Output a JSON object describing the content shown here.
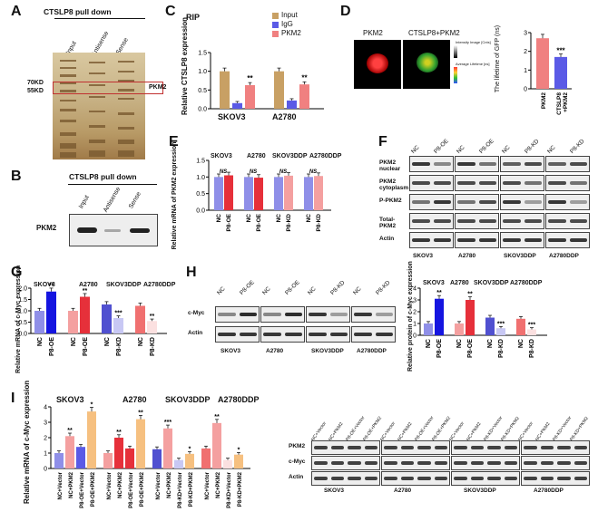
{
  "panels": {
    "A": {
      "letter": "A",
      "title": "CTSLP8 pull down",
      "lanes": [
        "Input",
        "Antisense",
        "Sense"
      ],
      "marker1": "70KD",
      "marker2": "55KD",
      "target": "PKM2"
    },
    "B": {
      "letter": "B",
      "title": "CTSLP8 pull down",
      "lanes": [
        "Input",
        "Antisense",
        "Sense"
      ],
      "target": "PKM2"
    },
    "C": {
      "letter": "C",
      "title": "RIP",
      "ylabel": "Relative CTSLP8 expression",
      "legend": [
        "Input",
        "IgG",
        "PKM2"
      ],
      "groups": [
        "SKOV3",
        "A2780"
      ],
      "sig": [
        "**",
        "**"
      ]
    },
    "D": {
      "letter": "D",
      "img1": "PKM2",
      "img2": "CTSLP8+PKM2",
      "scale1": "Intensity Image [Cnts]",
      "scale2": "Average Lifetime [ns]",
      "ylabel": "The lifetime of GFP (ns)",
      "cats": [
        "PKM2",
        "CTSLP8 +PKM2"
      ],
      "sig": "***"
    },
    "E": {
      "letter": "E",
      "ylabel": "Relative mRNA of PKM2 expression",
      "lines": [
        "SKOV3",
        "A2780",
        "SKOV3DDP",
        "A2780DDP"
      ],
      "sig": "NS",
      "xcats": [
        "NC",
        "P8-OE",
        "NC",
        "P8-OE",
        "NC",
        "P8-KD",
        "NC",
        "P8-KD"
      ]
    },
    "F": {
      "letter": "F",
      "rows": [
        "PKM2 nuclear",
        "PKM2 cytoplasm",
        "P-PKM2",
        "Total-PKM2",
        "Actin"
      ],
      "lanes": [
        "NC",
        "P8-OE",
        "NC",
        "P8-OE",
        "NC",
        "P8-KD",
        "NC",
        "P8-KD"
      ],
      "lines": [
        "SKOV3",
        "A2780",
        "SKOV3DDP",
        "A2780DDP"
      ]
    },
    "G": {
      "letter": "G",
      "ylabel": "Relative mRNA of c-Myc expression",
      "lines": [
        "SKOV3",
        "A2780",
        "SKOV3DDP",
        "A2780DDP"
      ],
      "xcats": [
        "NC",
        "P8-OE",
        "NC",
        "P8-OE",
        "NC",
        "P8-KD",
        "NC",
        "P8-KD"
      ],
      "sig": [
        "**",
        "**",
        "***",
        "**"
      ]
    },
    "H": {
      "letter": "H",
      "rows": [
        "c-Myc",
        "Actin"
      ],
      "lanes": [
        "NC",
        "P8-OE",
        "NC",
        "P8-OE",
        "NC",
        "P8-KD",
        "NC",
        "P8-KD"
      ],
      "lines": [
        "SKOV3",
        "A2780",
        "SKOV3DDP",
        "A2780DDP"
      ],
      "ylabel": "Relative protein of c-Myc expression",
      "sig": [
        "**",
        "**",
        "***",
        "***"
      ]
    },
    "I": {
      "letter": "I",
      "ylabel": "Relative mRNA of c-Myc expression",
      "lines": [
        "SKOV3",
        "A2780",
        "SKOV3DDP",
        "A2780DDP"
      ],
      "xcats_oe": [
        "NC+Vector",
        "NC+PKM2",
        "P8-OE+Vector",
        "P8-OE+PKM2"
      ],
      "xcats_kd": [
        "NC+Vector",
        "NC+PKM2",
        "P8-KD+Vector",
        "P8-KD+PKM2"
      ],
      "blot_rows": [
        "PKM2",
        "c-Myc",
        "Actin"
      ],
      "blot_lines": [
        "SKOV3",
        "A2780",
        "SKOV3DDP",
        "A2780DDP"
      ]
    }
  },
  "colors": {
    "input": "#c8a064",
    "igg": "#5a5ae6",
    "pkm2": "#f08080",
    "skov3_nc": "#8f8fe8",
    "skov3_p8": "#1515e0",
    "a2780_nc": "#f4a0a0",
    "a2780_p8": "#e6303a",
    "skov3ddp_nc": "#5050d0",
    "skov3ddp_kd": "#c8c8f4",
    "a2780ddp_nc": "#f07070",
    "a2780ddp_kd": "#fbe0e0",
    "orange": "#f6c080"
  },
  "chart_data": [
    {
      "panel": "C",
      "type": "bar",
      "categories": [
        "SKOV3",
        "A2780"
      ],
      "series": [
        {
          "name": "Input",
          "values": [
            1.0,
            1.0
          ]
        },
        {
          "name": "IgG",
          "values": [
            0.15,
            0.22
          ]
        },
        {
          "name": "PKM2",
          "values": [
            0.63,
            0.65
          ]
        }
      ],
      "ylabel": "Relative CTSLP8 expression",
      "ylim": [
        0,
        1.5
      ],
      "yticks": [
        0.0,
        0.5,
        1.0,
        1.5
      ]
    },
    {
      "panel": "D",
      "type": "bar",
      "categories": [
        "PKM2",
        "CTSLP8 +PKM2"
      ],
      "values": [
        2.7,
        1.7
      ],
      "ylabel": "The lifetime of GFP (ns)",
      "ylim": [
        0,
        3
      ],
      "yticks": [
        0,
        1,
        2,
        3
      ]
    },
    {
      "panel": "E",
      "type": "bar",
      "categories": [
        "NC",
        "P8-OE",
        "NC",
        "P8-OE",
        "NC",
        "P8-KD",
        "NC",
        "P8-KD"
      ],
      "values": [
        1.0,
        1.05,
        1.0,
        0.98,
        1.0,
        1.04,
        1.0,
        1.03
      ],
      "ylabel": "Relative mRNA of PKM2 expression",
      "ylim": [
        0,
        1.5
      ],
      "yticks": [
        0.0,
        0.5,
        1.0,
        1.5
      ]
    },
    {
      "panel": "G",
      "type": "bar",
      "categories": [
        "NC",
        "P8-OE",
        "NC",
        "P8-OE",
        "NC",
        "P8-KD",
        "NC",
        "P8-KD"
      ],
      "values": [
        1.0,
        1.85,
        1.0,
        1.62,
        1.28,
        0.68,
        1.22,
        0.55
      ],
      "ylabel": "Relative mRNA of c-Myc expression",
      "ylim": [
        0,
        2.0
      ],
      "yticks": [
        0.0,
        0.5,
        1.0,
        1.5,
        2.0
      ]
    },
    {
      "panel": "H",
      "type": "bar",
      "categories": [
        "NC",
        "P8-OE",
        "NC",
        "P8-OE",
        "NC",
        "P8-KD",
        "NC",
        "P8-KD"
      ],
      "values": [
        1.0,
        3.1,
        1.0,
        3.0,
        1.5,
        0.6,
        1.4,
        0.5
      ],
      "ylabel": "Relative protein of c-Myc expression",
      "ylim": [
        0,
        4
      ],
      "yticks": [
        0,
        1,
        2,
        3,
        4
      ]
    },
    {
      "panel": "I",
      "type": "bar",
      "categories": [
        "NC+Vector",
        "NC+PKM2",
        "P8-OE+Vector",
        "P8-OE+PKM2",
        "NC+Vector",
        "NC+PKM2",
        "P8-OE+Vector",
        "P8-OE+PKM2",
        "NC+Vector",
        "NC+PKM2",
        "P8-KD+Vector",
        "P8-KD+PKM2",
        "NC+Vector",
        "NC+PKM2",
        "P8-KD+Vector",
        "P8-KD+PKM2"
      ],
      "values": [
        1.0,
        2.1,
        1.4,
        3.7,
        1.0,
        2.0,
        1.3,
        3.2,
        1.25,
        2.6,
        0.55,
        0.95,
        1.3,
        2.95,
        0.55,
        0.9
      ],
      "ylabel": "Relative mRNA of c-Myc expression",
      "ylim": [
        0,
        4
      ],
      "yticks": [
        0,
        1,
        2,
        3,
        4
      ]
    }
  ]
}
